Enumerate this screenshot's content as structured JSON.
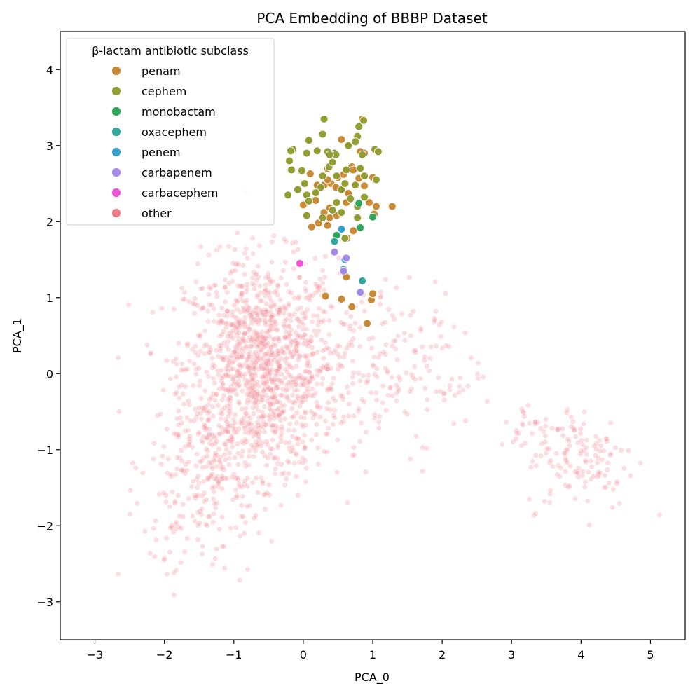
{
  "chart_data": {
    "type": "scatter",
    "title": "PCA Embedding of BBBP Dataset",
    "xlabel": "PCA_0",
    "ylabel": "PCA_1",
    "xlim": [
      -3.5,
      5.5
    ],
    "ylim": [
      -3.5,
      4.5
    ],
    "xticks": [
      -3,
      -2,
      -1,
      0,
      1,
      2,
      3,
      4,
      5
    ],
    "yticks": [
      -3,
      -2,
      -1,
      0,
      1,
      2,
      3,
      4
    ],
    "xtick_labels": [
      "−3",
      "−2",
      "−1",
      "0",
      "1",
      "2",
      "3",
      "4",
      "5"
    ],
    "ytick_labels": [
      "−3",
      "−2",
      "−1",
      "0",
      "1",
      "2",
      "3",
      "4"
    ],
    "grid": false,
    "legend": {
      "title": "β-lactam antibiotic subclass",
      "placement": "top-left"
    },
    "series": [
      {
        "name": "penam",
        "color": "#c98a35",
        "points": [
          [
            0.85,
            3.35
          ],
          [
            0.55,
            3.08
          ],
          [
            0.88,
            2.9
          ],
          [
            0.7,
            2.72
          ],
          [
            0.3,
            2.48
          ],
          [
            0.2,
            2.48
          ],
          [
            0.1,
            2.63
          ],
          [
            0.5,
            2.58
          ],
          [
            0.65,
            2.37
          ],
          [
            0.4,
            2.5
          ],
          [
            0.58,
            2.62
          ],
          [
            0.8,
            2.57
          ],
          [
            0.88,
            2.47
          ],
          [
            0.62,
            2.25
          ],
          [
            0.95,
            2.25
          ],
          [
            1.05,
            2.2
          ],
          [
            1.28,
            2.2
          ],
          [
            1.02,
            2.1
          ],
          [
            0.0,
            2.22
          ],
          [
            0.18,
            2.28
          ],
          [
            0.3,
            2.12
          ],
          [
            0.38,
            2.05
          ],
          [
            0.48,
            2.08
          ],
          [
            0.22,
            1.98
          ],
          [
            0.12,
            1.93
          ],
          [
            0.35,
            1.95
          ],
          [
            0.63,
            1.78
          ],
          [
            0.72,
            1.88
          ],
          [
            0.38,
            2.18
          ],
          [
            0.72,
            2.68
          ],
          [
            1.0,
            2.58
          ],
          [
            0.35,
            2.7
          ],
          [
            0.32,
            1.02
          ],
          [
            0.55,
            0.98
          ],
          [
            0.7,
            0.88
          ],
          [
            0.98,
            0.97
          ],
          [
            1.0,
            1.05
          ],
          [
            0.62,
            1.27
          ],
          [
            0.92,
            0.66
          ],
          [
            0.35,
            2.55
          ],
          [
            0.47,
            2.45
          ],
          [
            0.82,
            2.92
          ]
        ]
      },
      {
        "name": "cephem",
        "color": "#929e32",
        "points": [
          [
            0.3,
            3.35
          ],
          [
            0.87,
            3.33
          ],
          [
            0.8,
            3.25
          ],
          [
            0.78,
            3.12
          ],
          [
            0.28,
            3.15
          ],
          [
            0.08,
            3.07
          ],
          [
            -0.15,
            2.95
          ],
          [
            -0.18,
            2.93
          ],
          [
            0.05,
            2.9
          ],
          [
            0.2,
            2.93
          ],
          [
            0.35,
            2.92
          ],
          [
            0.45,
            2.9
          ],
          [
            0.47,
            2.88
          ],
          [
            0.65,
            3.0
          ],
          [
            0.75,
            3.05
          ],
          [
            1.03,
            2.95
          ],
          [
            1.08,
            2.92
          ],
          [
            0.85,
            2.88
          ],
          [
            -0.2,
            2.8
          ],
          [
            -0.02,
            2.67
          ],
          [
            -0.17,
            2.68
          ],
          [
            0.37,
            2.72
          ],
          [
            0.42,
            2.78
          ],
          [
            0.62,
            2.68
          ],
          [
            0.82,
            2.7
          ],
          [
            0.28,
            2.6
          ],
          [
            0.48,
            2.6
          ],
          [
            0.88,
            2.6
          ],
          [
            1.05,
            2.55
          ],
          [
            0.02,
            2.5
          ],
          [
            0.25,
            2.45
          ],
          [
            0.55,
            2.42
          ],
          [
            0.75,
            2.48
          ],
          [
            -0.08,
            2.42
          ],
          [
            -0.22,
            2.35
          ],
          [
            0.05,
            2.35
          ],
          [
            0.18,
            2.38
          ],
          [
            0.68,
            2.3
          ],
          [
            0.88,
            2.32
          ],
          [
            0.48,
            2.25
          ],
          [
            0.78,
            2.2
          ],
          [
            0.08,
            2.27
          ],
          [
            0.42,
            2.15
          ],
          [
            0.55,
            2.12
          ],
          [
            0.05,
            2.08
          ],
          [
            0.28,
            2.05
          ],
          [
            0.78,
            2.05
          ],
          [
            0.6,
            1.78
          ],
          [
            0.38,
            2.88
          ],
          [
            0.6,
            2.5
          ]
        ]
      },
      {
        "name": "monobactam",
        "color": "#2fa85a",
        "points": [
          [
            0.8,
            2.24
          ],
          [
            1.0,
            2.06
          ],
          [
            0.82,
            1.92
          ],
          [
            0.48,
            1.82
          ]
        ]
      },
      {
        "name": "oxacephem",
        "color": "#32a89c",
        "points": [
          [
            0.45,
            1.74
          ],
          [
            0.58,
            1.37
          ],
          [
            0.85,
            1.22
          ]
        ]
      },
      {
        "name": "penem",
        "color": "#38a2cf",
        "points": [
          [
            0.55,
            1.9
          ],
          [
            0.6,
            1.5
          ]
        ]
      },
      {
        "name": "carbapenem",
        "color": "#a48ae8",
        "points": [
          [
            0.45,
            1.6
          ],
          [
            0.62,
            1.52
          ],
          [
            0.58,
            1.35
          ],
          [
            0.82,
            1.07
          ]
        ]
      },
      {
        "name": "carbacephem",
        "color": "#ee55d8",
        "points": [
          [
            -0.05,
            1.45
          ]
        ]
      },
      {
        "name": "other",
        "color": "#f07b87",
        "alpha": 0.25,
        "clusters": [
          {
            "cx": -0.6,
            "cy": 0.1,
            "sx": 0.55,
            "sy": 0.7,
            "n": 1200
          },
          {
            "cx": -1.3,
            "cy": -1.2,
            "sx": 0.45,
            "sy": 0.55,
            "n": 250
          },
          {
            "cx": -1.9,
            "cy": -2.1,
            "sx": 0.3,
            "sy": 0.35,
            "n": 30
          },
          {
            "cx": 0.8,
            "cy": 0.0,
            "sx": 0.55,
            "sy": 0.6,
            "n": 160
          },
          {
            "cx": 1.9,
            "cy": 0.1,
            "sx": 0.35,
            "sy": 0.45,
            "n": 50
          },
          {
            "cx": 4.0,
            "cy": -1.1,
            "sx": 0.4,
            "sy": 0.35,
            "n": 130
          },
          {
            "cx": 3.3,
            "cy": -0.7,
            "sx": 0.25,
            "sy": 0.15,
            "n": 25
          }
        ]
      }
    ]
  }
}
